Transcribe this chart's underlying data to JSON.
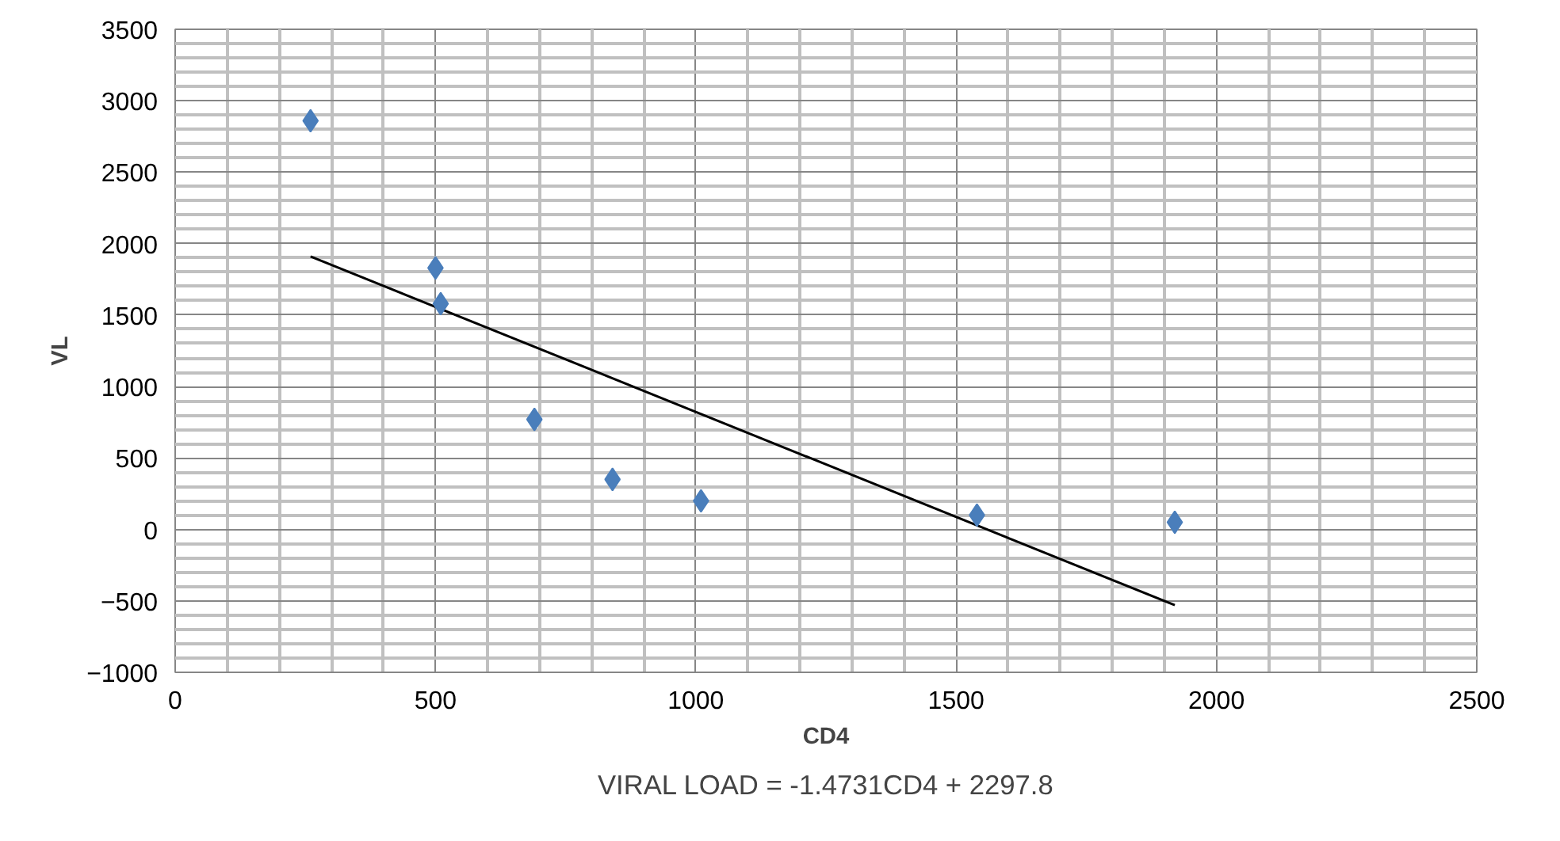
{
  "chart_data": {
    "type": "scatter",
    "xlabel": "CD4",
    "ylabel": "VL",
    "annotations": [
      "VIRAL LOAD = -1.4731CD4 + 2297.8"
    ],
    "series": [
      {
        "color": "#4a7ebb",
        "marker": "diamond",
        "x": [
          260,
          500,
          510,
          690,
          840,
          1010,
          1540,
          1920
        ],
        "values": [
          2860,
          1830,
          1580,
          770,
          350,
          200,
          100,
          50
        ]
      },
      {
        "type": "line",
        "color": "#000000",
        "x": [
          260,
          1920
        ],
        "values": [
          1910,
          -530
        ]
      }
    ],
    "xlim": [
      0,
      2500
    ],
    "xticks": [
      0,
      500,
      1000,
      1500,
      2000,
      2500
    ],
    "ylim": [
      -1000,
      3500
    ],
    "yticks": [
      -1000,
      -500,
      0,
      500,
      1000,
      1500,
      2000,
      2500,
      3000,
      3500
    ],
    "grid": true,
    "line_style": "solid"
  }
}
